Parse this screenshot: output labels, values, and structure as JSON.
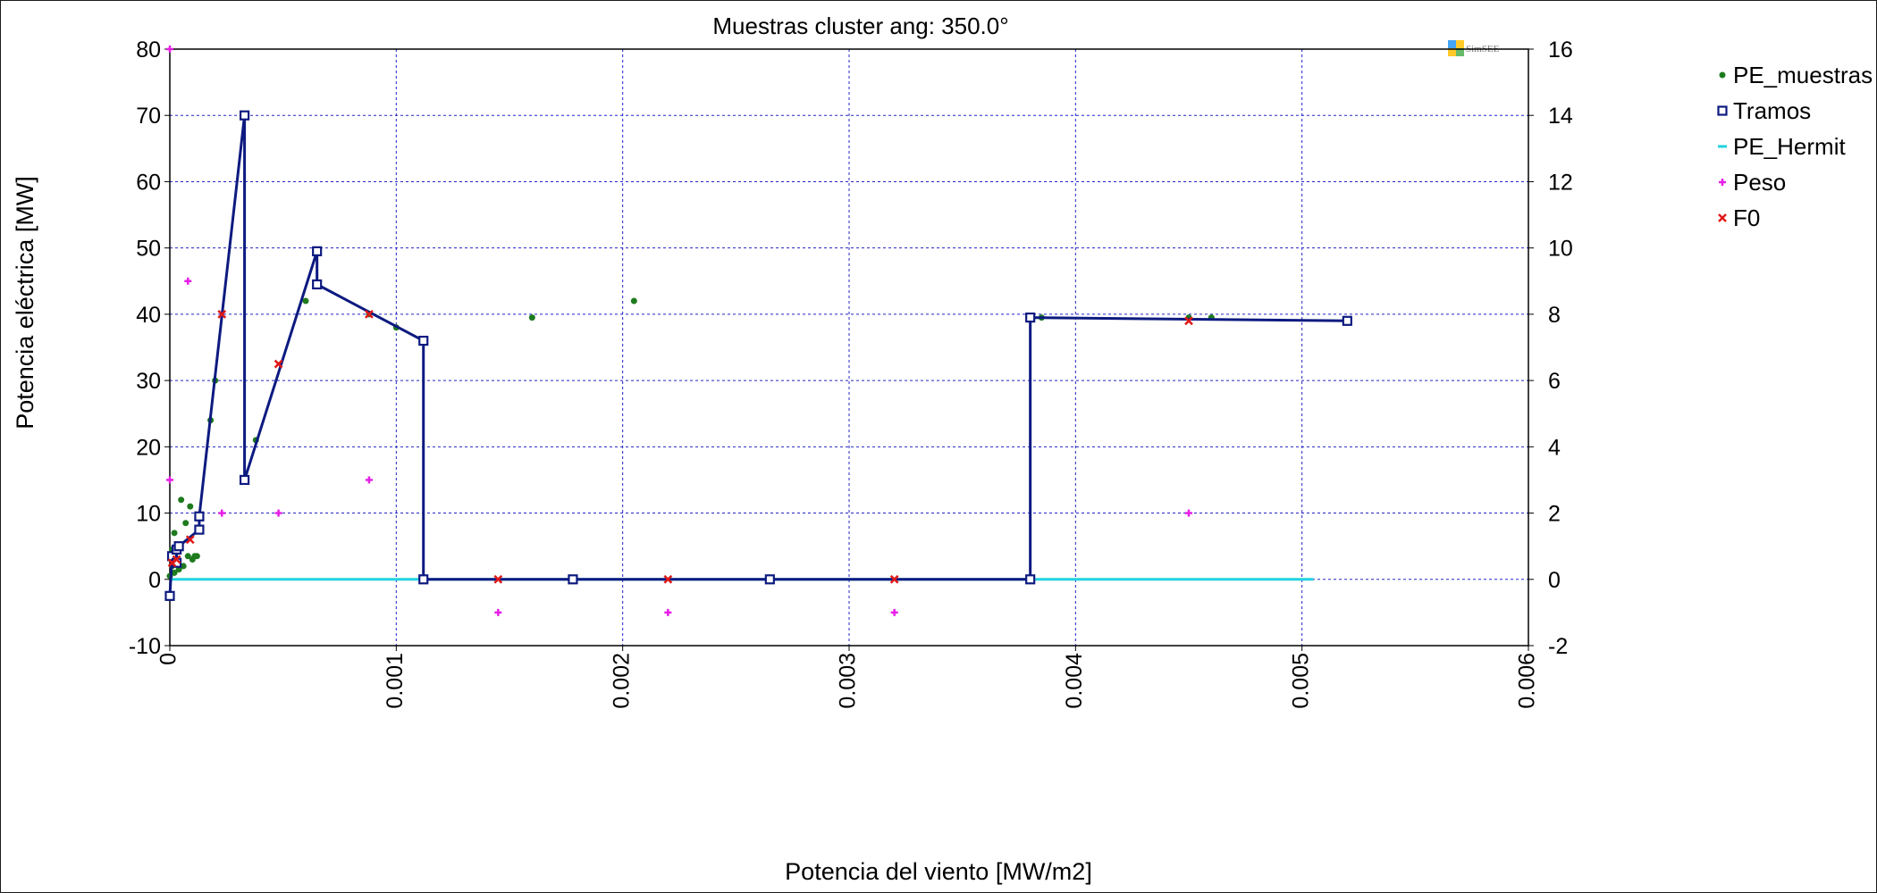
{
  "chart_data": {
    "type": "scatter",
    "title": "Muestras cluster ang: 350.0°",
    "xlabel": "Potencia del viento [MW/m2]",
    "ylabel": "Potencia eléctrica [MW]",
    "logo_text": "SimSEE",
    "xlim": [
      0,
      0.006
    ],
    "ylim": [
      -10,
      80
    ],
    "y2lim": [
      -2,
      16
    ],
    "x_ticks": [
      "0",
      "0.001",
      "0.002",
      "0.003",
      "0.004",
      "0.005",
      "0.006"
    ],
    "x_tick_values": [
      0,
      0.001,
      0.002,
      0.003,
      0.004,
      0.005,
      0.006
    ],
    "y_ticks": [
      "-10",
      "0",
      "10",
      "20",
      "30",
      "40",
      "50",
      "60",
      "70",
      "80"
    ],
    "y_tick_values": [
      -10,
      0,
      10,
      20,
      30,
      40,
      50,
      60,
      70,
      80
    ],
    "y2_ticks": [
      "-2",
      "0",
      "2",
      "4",
      "6",
      "8",
      "10",
      "12",
      "14",
      "16"
    ],
    "y2_tick_values": [
      -2,
      0,
      2,
      4,
      6,
      8,
      10,
      12,
      14,
      16
    ],
    "grid": true,
    "legend_position": "right",
    "series": [
      {
        "name": "PE_muestras",
        "color": "#1e7b1e",
        "marker": "dot",
        "axis": "left",
        "points": [
          [
            0.0,
            0.5
          ],
          [
            1e-05,
            2.0
          ],
          [
            1e-05,
            4.5
          ],
          [
            2e-05,
            7.0
          ],
          [
            2e-05,
            1.0
          ],
          [
            3e-05,
            3.0
          ],
          [
            4e-05,
            1.5
          ],
          [
            5e-05,
            12.0
          ],
          [
            6e-05,
            2.0
          ],
          [
            7e-05,
            8.5
          ],
          [
            8e-05,
            3.5
          ],
          [
            9e-05,
            11.0
          ],
          [
            0.0001,
            3.0
          ],
          [
            0.00011,
            3.5
          ],
          [
            0.00012,
            3.5
          ],
          [
            0.00018,
            24.0
          ],
          [
            0.0002,
            30.0
          ],
          [
            0.00038,
            21.0
          ],
          [
            0.0006,
            42.0
          ],
          [
            0.00088,
            40.0
          ],
          [
            0.001,
            38.0
          ],
          [
            0.0016,
            39.5
          ],
          [
            0.00205,
            42.0
          ],
          [
            0.00385,
            39.5
          ],
          [
            0.0045,
            39.5
          ],
          [
            0.0046,
            39.5
          ]
        ]
      },
      {
        "name": "Tramos",
        "color": "#0d1a80",
        "marker": "square",
        "axis": "left",
        "points": [
          [
            0.0,
            -2.5
          ],
          [
            1e-05,
            3.5
          ],
          [
            3e-05,
            2.5
          ],
          [
            3e-05,
            4.5
          ],
          [
            4e-05,
            5.0
          ],
          [
            0.00013,
            7.5
          ],
          [
            0.00013,
            9.5
          ],
          [
            0.00033,
            70.0
          ],
          [
            0.00033,
            15.0
          ],
          [
            0.00065,
            49.5
          ],
          [
            0.00065,
            44.5
          ],
          [
            0.00112,
            36.0
          ],
          [
            0.00112,
            0.0
          ],
          [
            0.00178,
            0.0
          ],
          [
            0.00265,
            0.0
          ],
          [
            0.0038,
            0.0
          ],
          [
            0.0038,
            39.5
          ],
          [
            0.0052,
            39.0
          ]
        ]
      },
      {
        "name": "PE_Hermit",
        "color": "#22d3e0",
        "marker": "line",
        "axis": "left",
        "points": [
          [
            0.0,
            0.0
          ],
          [
            0.00505,
            0.0
          ]
        ]
      },
      {
        "name": "Peso",
        "color": "#e61fe6",
        "marker": "plus",
        "axis": "right",
        "points": [
          [
            0.0,
            16.0
          ],
          [
            0.0,
            3.0
          ],
          [
            8e-05,
            9.0
          ],
          [
            0.00023,
            2.0
          ],
          [
            0.00048,
            2.0
          ],
          [
            0.00088,
            3.0
          ],
          [
            0.00145,
            -1.0
          ],
          [
            0.0022,
            -1.0
          ],
          [
            0.0032,
            -1.0
          ],
          [
            0.0045,
            2.0
          ]
        ]
      },
      {
        "name": "F0",
        "color": "#e01818",
        "marker": "cross",
        "axis": "left",
        "points": [
          [
            1e-05,
            2.5
          ],
          [
            3e-05,
            3.0
          ],
          [
            9e-05,
            6.0
          ],
          [
            0.00023,
            40.0
          ],
          [
            0.00048,
            32.5
          ],
          [
            0.00088,
            40.0
          ],
          [
            0.00145,
            0.0
          ],
          [
            0.0022,
            0.0
          ],
          [
            0.0032,
            0.0
          ],
          [
            0.0045,
            39.0
          ]
        ]
      }
    ]
  }
}
